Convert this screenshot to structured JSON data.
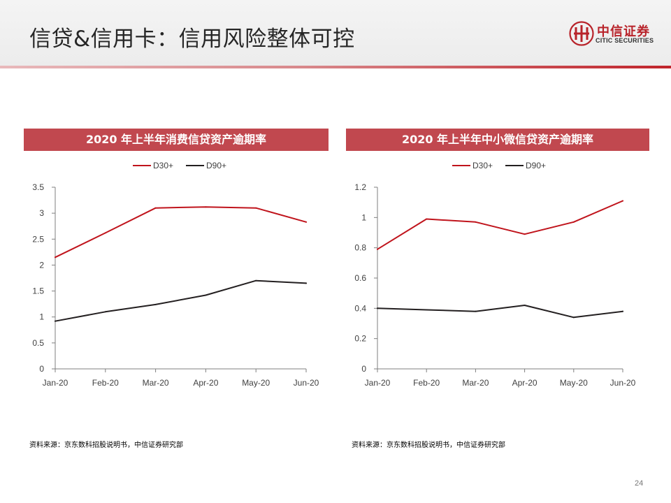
{
  "header": {
    "title": "信贷&信用卡：信用风险整体可控"
  },
  "logo": {
    "cn": "中信证券",
    "en": "CITIC SECURITIES"
  },
  "page_number": "24",
  "colors": {
    "accent": "#c0242b",
    "panel_title_bg": "#c1484f",
    "d30": "#c0141c",
    "d90": "#231f20"
  },
  "chart_data": [
    {
      "type": "line",
      "title": "2020 年上半年消费信贷资产逾期率",
      "categories": [
        "Jan-20",
        "Feb-20",
        "Mar-20",
        "Apr-20",
        "May-20",
        "Jun-20"
      ],
      "series": [
        {
          "name": "D30+",
          "color": "#c0141c",
          "values": [
            2.15,
            2.62,
            3.1,
            3.12,
            3.1,
            2.83
          ]
        },
        {
          "name": "D90+",
          "color": "#231f20",
          "values": [
            0.92,
            1.1,
            1.24,
            1.42,
            1.7,
            1.65
          ]
        }
      ],
      "yticks": [
        "0",
        "0.5",
        "1",
        "1.5",
        "2",
        "2.5",
        "3",
        "3.5"
      ],
      "ylim": [
        0,
        3.5
      ],
      "legend_position": "top",
      "grid": false,
      "source": "资料来源：京东数科招股说明书，中信证券研究部"
    },
    {
      "type": "line",
      "title": "2020 年上半年中小微信贷资产逾期率",
      "categories": [
        "Jan-20",
        "Feb-20",
        "Mar-20",
        "Apr-20",
        "May-20",
        "Jun-20"
      ],
      "series": [
        {
          "name": "D30+",
          "color": "#c0141c",
          "values": [
            0.79,
            0.99,
            0.97,
            0.89,
            0.97,
            1.11
          ]
        },
        {
          "name": "D90+",
          "color": "#231f20",
          "values": [
            0.4,
            0.39,
            0.38,
            0.42,
            0.34,
            0.38
          ]
        }
      ],
      "yticks": [
        "0",
        "0.2",
        "0.4",
        "0.6",
        "0.8",
        "1",
        "1.2"
      ],
      "ylim": [
        0,
        1.2
      ],
      "legend_position": "top",
      "grid": false,
      "source": "资料来源：京东数科招股说明书，中信证券研究部"
    }
  ]
}
